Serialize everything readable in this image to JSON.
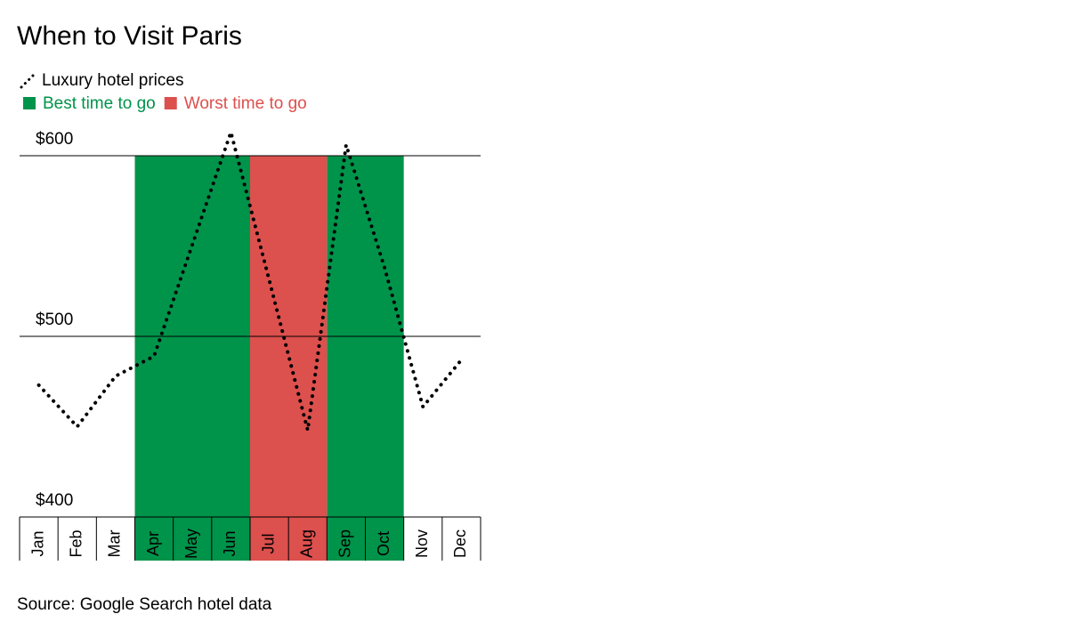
{
  "chart_data": {
    "type": "line",
    "title": "When to Visit Paris",
    "source": "Source: Google Search hotel data",
    "categories": [
      "Jan",
      "Feb",
      "Mar",
      "Apr",
      "May",
      "Jun",
      "Jul",
      "Aug",
      "Sep",
      "Oct",
      "Nov",
      "Dec"
    ],
    "series": [
      {
        "name": "Luxury hotel prices",
        "color": "#000000",
        "values": [
          473,
          450,
          478,
          489,
          551,
          613,
          531,
          448,
          606,
          538,
          461,
          487
        ]
      }
    ],
    "highlights": [
      {
        "name": "Best time to go",
        "color": "#00934a",
        "ranges": [
          [
            "Apr",
            "Jun"
          ],
          [
            "Sep",
            "Oct"
          ]
        ]
      },
      {
        "name": "Worst time to go",
        "color": "#dc504d",
        "ranges": [
          [
            "Jul",
            "Aug"
          ]
        ]
      }
    ],
    "ylim": [
      400,
      620
    ],
    "yticks": [
      {
        "value": 400,
        "label": "$400"
      },
      {
        "value": 500,
        "label": "$500"
      },
      {
        "value": 600,
        "label": "$600"
      }
    ],
    "grid": true
  }
}
